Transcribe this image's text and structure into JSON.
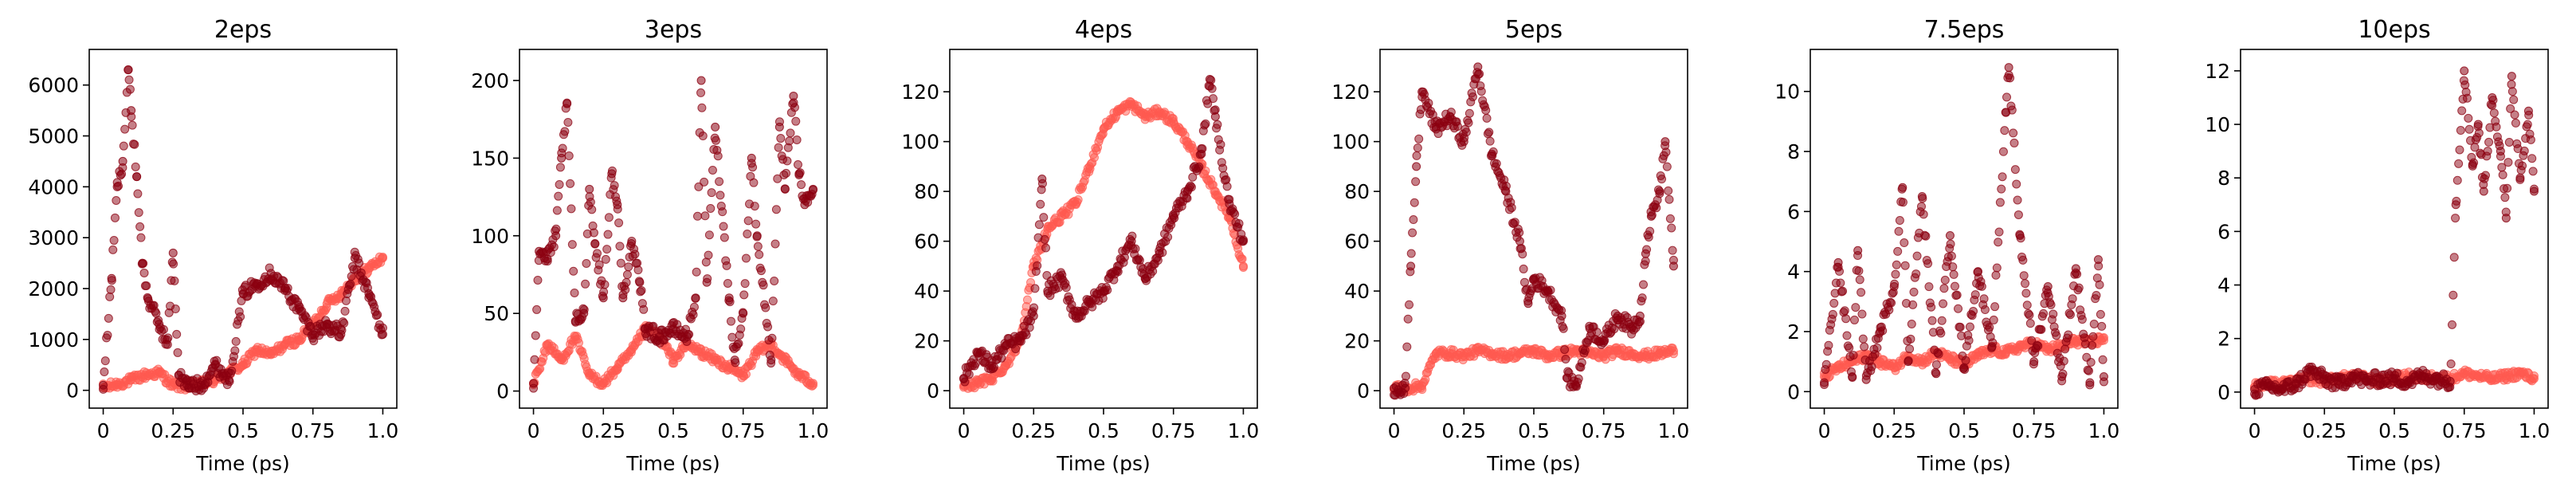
{
  "figure": {
    "colors": {
      "series_light": "#ff5a50",
      "series_dark": "#8b0010",
      "axes": "#000000",
      "background": "#ffffff"
    }
  },
  "chart_data": [
    {
      "type": "scatter",
      "title": "2eps",
      "xlabel": "Time (ps)",
      "ylabel": "",
      "xlim": [
        -0.05,
        1.05
      ],
      "ylim": [
        -350,
        6700
      ],
      "xticks": [
        0,
        0.25,
        0.5,
        0.75,
        1.0
      ],
      "xtick_labels": [
        "0",
        "0.25",
        "0.5",
        "0.75",
        "1.0"
      ],
      "yticks": [
        0,
        1000,
        2000,
        3000,
        4000,
        5000,
        6000
      ],
      "ytick_labels": [
        "0",
        "1000",
        "2000",
        "3000",
        "4000",
        "5000",
        "6000"
      ],
      "series": [
        {
          "color": "#ff5a50",
          "x": [
            0,
            0.05,
            0.1,
            0.15,
            0.2,
            0.25,
            0.3,
            0.35,
            0.4,
            0.45,
            0.5,
            0.55,
            0.6,
            0.65,
            0.7,
            0.75,
            0.8,
            0.85,
            0.9,
            0.95,
            1.0
          ],
          "y": [
            50,
            120,
            200,
            300,
            350,
            100,
            80,
            120,
            200,
            350,
            500,
            800,
            700,
            900,
            1000,
            1300,
            1700,
            1900,
            2200,
            2400,
            2600
          ]
        },
        {
          "color": "#8b0010",
          "x": [
            0,
            0.03,
            0.05,
            0.07,
            0.09,
            0.1,
            0.12,
            0.14,
            0.16,
            0.2,
            0.23,
            0.25,
            0.27,
            0.3,
            0.35,
            0.4,
            0.45,
            0.5,
            0.55,
            0.6,
            0.65,
            0.7,
            0.75,
            0.8,
            0.85,
            0.9,
            0.95,
            1.0
          ],
          "y": [
            100,
            2200,
            4000,
            4500,
            6300,
            5500,
            4200,
            2500,
            1800,
            1300,
            900,
            2700,
            300,
            100,
            100,
            500,
            200,
            1900,
            2100,
            2300,
            2000,
            1600,
            1100,
            1300,
            1100,
            2600,
            1900,
            1100
          ]
        }
      ]
    },
    {
      "type": "scatter",
      "title": "3eps",
      "xlabel": "Time (ps)",
      "ylabel": "",
      "xlim": [
        -0.05,
        1.05
      ],
      "ylim": [
        -11,
        220
      ],
      "xticks": [
        0,
        0.25,
        0.5,
        0.75,
        1.0
      ],
      "xtick_labels": [
        "0",
        "0.25",
        "0.5",
        "0.75",
        "1.0"
      ],
      "yticks": [
        0,
        50,
        100,
        150,
        200
      ],
      "ytick_labels": [
        "0",
        "50",
        "100",
        "150",
        "200"
      ],
      "series": [
        {
          "color": "#ff5a50",
          "x": [
            0,
            0.05,
            0.1,
            0.15,
            0.2,
            0.25,
            0.3,
            0.35,
            0.4,
            0.45,
            0.5,
            0.55,
            0.6,
            0.65,
            0.7,
            0.75,
            0.8,
            0.85,
            0.9,
            0.95,
            1.0
          ],
          "y": [
            5,
            30,
            20,
            35,
            10,
            5,
            15,
            25,
            40,
            35,
            20,
            30,
            25,
            20,
            15,
            10,
            25,
            30,
            20,
            10,
            5
          ]
        },
        {
          "color": "#8b0010",
          "x": [
            0,
            0.02,
            0.05,
            0.08,
            0.1,
            0.12,
            0.15,
            0.18,
            0.2,
            0.22,
            0.25,
            0.28,
            0.3,
            0.32,
            0.35,
            0.38,
            0.4,
            0.45,
            0.5,
            0.55,
            0.58,
            0.6,
            0.62,
            0.65,
            0.7,
            0.72,
            0.75,
            0.78,
            0.8,
            0.85,
            0.88,
            0.9,
            0.93,
            0.95,
            0.97,
            1.0
          ],
          "y": [
            5,
            90,
            85,
            100,
            150,
            185,
            45,
            50,
            130,
            95,
            60,
            140,
            120,
            60,
            95,
            70,
            40,
            35,
            40,
            35,
            60,
            200,
            70,
            170,
            60,
            20,
            50,
            150,
            100,
            20,
            170,
            130,
            190,
            140,
            120,
            130
          ]
        }
      ]
    },
    {
      "type": "scatter",
      "title": "4eps",
      "xlabel": "Time (ps)",
      "ylabel": "",
      "xlim": [
        -0.05,
        1.05
      ],
      "ylim": [
        -7,
        137
      ],
      "xticks": [
        0,
        0.25,
        0.5,
        0.75,
        1.0
      ],
      "xtick_labels": [
        "0",
        "0.25",
        "0.5",
        "0.75",
        "1.0"
      ],
      "yticks": [
        0,
        20,
        40,
        60,
        80,
        100,
        120
      ],
      "ytick_labels": [
        "0",
        "20",
        "40",
        "60",
        "80",
        "100",
        "120"
      ],
      "series": [
        {
          "color": "#ff5a50",
          "x": [
            0,
            0.05,
            0.1,
            0.15,
            0.2,
            0.25,
            0.3,
            0.35,
            0.4,
            0.45,
            0.5,
            0.55,
            0.6,
            0.65,
            0.7,
            0.75,
            0.8,
            0.85,
            0.9,
            0.95,
            1.0
          ],
          "y": [
            2,
            3,
            5,
            10,
            20,
            50,
            65,
            70,
            75,
            90,
            105,
            112,
            115,
            110,
            112,
            108,
            100,
            90,
            80,
            70,
            50
          ]
        },
        {
          "color": "#8b0010",
          "x": [
            0,
            0.05,
            0.1,
            0.15,
            0.2,
            0.25,
            0.28,
            0.3,
            0.35,
            0.4,
            0.45,
            0.5,
            0.55,
            0.6,
            0.65,
            0.7,
            0.75,
            0.8,
            0.85,
            0.88,
            0.9,
            0.95,
            1.0
          ],
          "y": [
            5,
            15,
            10,
            18,
            20,
            30,
            85,
            40,
            45,
            30,
            35,
            40,
            50,
            60,
            45,
            55,
            70,
            80,
            95,
            125,
            110,
            75,
            60
          ]
        }
      ]
    },
    {
      "type": "scatter",
      "title": "5eps",
      "xlabel": "Time (ps)",
      "ylabel": "",
      "xlim": [
        -0.05,
        1.05
      ],
      "ylim": [
        -7,
        137
      ],
      "xticks": [
        0,
        0.25,
        0.5,
        0.75,
        1.0
      ],
      "xtick_labels": [
        "0",
        "0.25",
        "0.5",
        "0.75",
        "1.0"
      ],
      "yticks": [
        0,
        20,
        40,
        60,
        80,
        100,
        120
      ],
      "ytick_labels": [
        "0",
        "20",
        "40",
        "60",
        "80",
        "100",
        "120"
      ],
      "series": [
        {
          "color": "#ff5a50",
          "x": [
            0,
            0.05,
            0.1,
            0.15,
            0.2,
            0.25,
            0.3,
            0.35,
            0.4,
            0.45,
            0.5,
            0.55,
            0.6,
            0.65,
            0.7,
            0.75,
            0.8,
            0.85,
            0.9,
            0.95,
            1.0
          ],
          "y": [
            1,
            1,
            2,
            15,
            15,
            14,
            16,
            15,
            14,
            15,
            16,
            14,
            15,
            16,
            15,
            14,
            16,
            15,
            14,
            15,
            16
          ]
        },
        {
          "color": "#8b0010",
          "x": [
            0,
            0.04,
            0.06,
            0.08,
            0.1,
            0.15,
            0.2,
            0.25,
            0.3,
            0.35,
            0.4,
            0.45,
            0.48,
            0.5,
            0.55,
            0.6,
            0.62,
            0.65,
            0.7,
            0.75,
            0.8,
            0.85,
            0.88,
            0.9,
            0.92,
            0.95,
            0.97,
            1.0
          ],
          "y": [
            1,
            1,
            50,
            90,
            120,
            105,
            110,
            100,
            130,
            95,
            80,
            60,
            35,
            45,
            40,
            30,
            5,
            2,
            25,
            20,
            30,
            25,
            30,
            55,
            70,
            80,
            100,
            50
          ]
        }
      ]
    },
    {
      "type": "scatter",
      "title": "7.5eps",
      "xlabel": "Time (ps)",
      "ylabel": "",
      "xlim": [
        -0.05,
        1.05
      ],
      "ylim": [
        -0.55,
        11.4
      ],
      "xticks": [
        0,
        0.25,
        0.5,
        0.75,
        1.0
      ],
      "xtick_labels": [
        "0",
        "0.25",
        "0.5",
        "0.75",
        "1.0"
      ],
      "yticks": [
        0,
        2,
        4,
        6,
        8,
        10
      ],
      "ytick_labels": [
        "0",
        "2",
        "4",
        "6",
        "8",
        "10"
      ],
      "series": [
        {
          "color": "#ff5a50",
          "x": [
            0,
            0.05,
            0.1,
            0.15,
            0.2,
            0.25,
            0.3,
            0.35,
            0.4,
            0.45,
            0.5,
            0.55,
            0.6,
            0.65,
            0.7,
            0.75,
            0.8,
            0.85,
            0.9,
            0.95,
            1.0
          ],
          "y": [
            0.5,
            0.8,
            1.0,
            1.2,
            1.0,
            0.8,
            1.2,
            1.0,
            1.3,
            1.1,
            0.9,
            1.2,
            1.4,
            1.3,
            1.5,
            1.6,
            1.4,
            1.5,
            1.7,
            1.6,
            1.8
          ]
        },
        {
          "color": "#8b0010",
          "x": [
            0,
            0.05,
            0.1,
            0.12,
            0.15,
            0.2,
            0.25,
            0.28,
            0.3,
            0.35,
            0.4,
            0.45,
            0.5,
            0.55,
            0.6,
            0.65,
            0.66,
            0.7,
            0.75,
            0.8,
            0.85,
            0.9,
            0.95,
            0.98,
            1.0
          ],
          "y": [
            0.3,
            4.3,
            0.5,
            4.7,
            0.4,
            2.0,
            3.5,
            6.8,
            1.0,
            6.5,
            0.6,
            5.2,
            0.8,
            4.0,
            1.5,
            9.3,
            10.8,
            5.2,
            1.0,
            3.5,
            0.5,
            4.1,
            0.3,
            4.4,
            0.5
          ]
        }
      ]
    },
    {
      "type": "scatter",
      "title": "10eps",
      "xlabel": "Time (ps)",
      "ylabel": "",
      "xlim": [
        -0.05,
        1.05
      ],
      "ylim": [
        -0.6,
        12.8
      ],
      "xticks": [
        0,
        0.25,
        0.5,
        0.75,
        1.0
      ],
      "xtick_labels": [
        "0",
        "0.25",
        "0.5",
        "0.75",
        "1.0"
      ],
      "yticks": [
        0,
        2,
        4,
        6,
        8,
        10,
        12
      ],
      "ytick_labels": [
        "0",
        "2",
        "4",
        "6",
        "8",
        "10",
        "12"
      ],
      "series": [
        {
          "color": "#ff5a50",
          "x": [
            0,
            0.05,
            0.1,
            0.15,
            0.2,
            0.25,
            0.3,
            0.35,
            0.4,
            0.45,
            0.5,
            0.55,
            0.6,
            0.65,
            0.7,
            0.75,
            0.8,
            0.85,
            0.9,
            0.95,
            1.0
          ],
          "y": [
            0.2,
            0.3,
            0.3,
            0.4,
            0.5,
            0.4,
            0.5,
            0.6,
            0.5,
            0.4,
            0.5,
            0.6,
            0.5,
            0.6,
            0.5,
            0.7,
            0.6,
            0.5,
            0.6,
            0.7,
            0.5
          ]
        },
        {
          "color": "#8b0010",
          "x": [
            0,
            0.05,
            0.1,
            0.15,
            0.2,
            0.25,
            0.3,
            0.35,
            0.4,
            0.45,
            0.5,
            0.55,
            0.6,
            0.65,
            0.7,
            0.72,
            0.75,
            0.78,
            0.8,
            0.82,
            0.85,
            0.88,
            0.9,
            0.92,
            0.95,
            0.98,
            1.0
          ],
          "y": [
            0.1,
            0.2,
            0.1,
            0.3,
            0.8,
            0.5,
            0.3,
            0.6,
            0.4,
            0.5,
            0.5,
            0.4,
            0.6,
            0.5,
            0.4,
            7.0,
            12.0,
            8.5,
            10.0,
            7.5,
            11.0,
            9.0,
            6.5,
            11.8,
            8.0,
            10.5,
            7.5
          ]
        }
      ]
    }
  ]
}
